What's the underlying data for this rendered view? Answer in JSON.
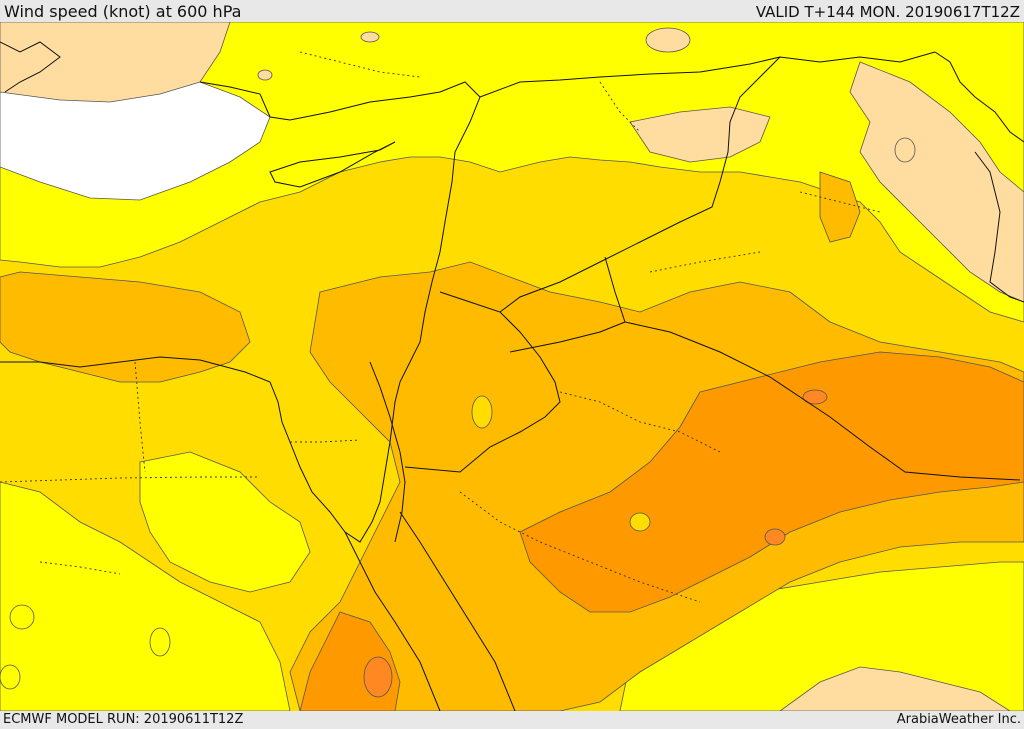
{
  "header": {
    "title": "Wind speed (knot) at 600 hPa",
    "valid": "VALID T+144 MON. 20190617T12Z"
  },
  "footer": {
    "model_run": "ECMWF MODEL RUN: 20190611T12Z",
    "credit": "ArabiaWeather Inc."
  },
  "map": {
    "region": "Eastern Mediterranean and Middle East",
    "variable": "wind speed at 600 hPa",
    "fill_colors": {
      "sea_white": "#ffffff",
      "lightest": "#ffdda0",
      "yellow": "#ffff00",
      "gold": "#ffdd00",
      "amber": "#ffbb00",
      "orange": "#ff9900",
      "dark_orange": "#ff8822"
    },
    "border_color": "#000000",
    "contour_color": "#555555"
  }
}
